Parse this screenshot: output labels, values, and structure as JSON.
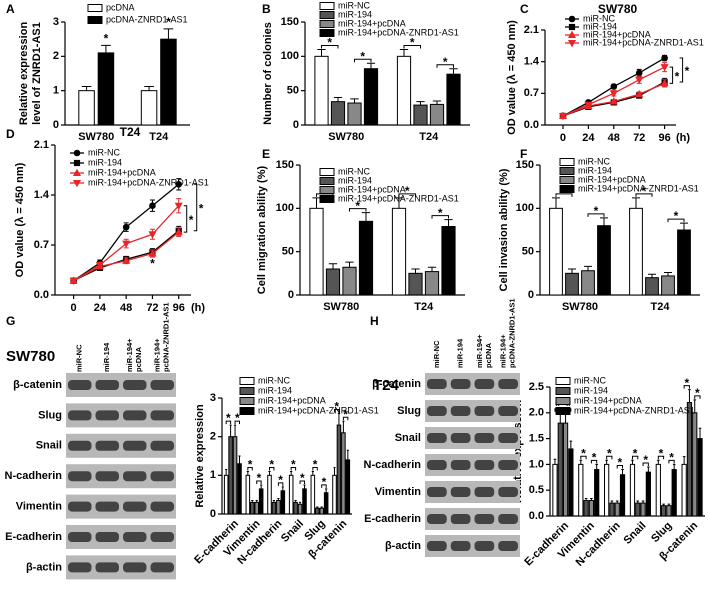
{
  "chart_data": [
    {
      "panel": "A",
      "type": "bar",
      "ylabel": [
        "Relative expression",
        "level of ZNRD1-AS1"
      ],
      "categories": [
        "SW780",
        "T24"
      ],
      "ylim": [
        0,
        3
      ],
      "yticks": [
        0,
        1,
        2,
        3
      ],
      "series": [
        {
          "name": "pcDNA",
          "color": "#ffffff",
          "values": [
            1.0,
            1.0
          ],
          "errors": [
            0.12,
            0.12
          ]
        },
        {
          "name": "pcDNA-ZNRD1-AS1",
          "color": "#000000",
          "values": [
            2.1,
            2.5
          ],
          "errors": [
            0.22,
            0.3
          ]
        }
      ],
      "significance": [
        {
          "category": 0,
          "series": [
            1
          ],
          "label": "*"
        },
        {
          "category": 1,
          "series": [
            1
          ],
          "label": "*"
        }
      ]
    },
    {
      "panel": "B",
      "type": "bar",
      "ylabel": "Number of colonies",
      "categories": [
        "SW780",
        "T24"
      ],
      "ylim": [
        0,
        150
      ],
      "yticks": [
        0,
        50,
        100,
        150
      ],
      "series": [
        {
          "name": "miR-NC",
          "color": "#ffffff",
          "values": [
            100,
            100
          ],
          "errors": [
            10,
            10
          ]
        },
        {
          "name": "miR-194",
          "color": "#555555",
          "values": [
            34,
            29
          ],
          "errors": [
            6,
            5
          ]
        },
        {
          "name": "miR-194+pcDNA",
          "color": "#888888",
          "values": [
            32,
            30
          ],
          "errors": [
            6,
            5
          ]
        },
        {
          "name": "miR-194+pcDNA-ZNRD1-AS1",
          "color": "#000000",
          "values": [
            82,
            74
          ],
          "errors": [
            8,
            8
          ]
        }
      ],
      "significance": [
        {
          "category": 0,
          "series": [
            0,
            1
          ],
          "label": "*"
        },
        {
          "category": 0,
          "series": [
            2,
            3
          ],
          "label": "*"
        },
        {
          "category": 1,
          "series": [
            0,
            1
          ],
          "label": "*"
        },
        {
          "category": 1,
          "series": [
            2,
            3
          ],
          "label": "*"
        }
      ]
    },
    {
      "panel": "C",
      "type": "line",
      "title": "SW780",
      "ylabel": "OD value (λ = 450 nm)",
      "x": [
        0,
        24,
        48,
        72,
        96
      ],
      "xunit": "(h)",
      "xlim": [
        -17,
        120
      ],
      "xticks": [
        0,
        24,
        48,
        72,
        96
      ],
      "ylim": [
        0,
        2.1
      ],
      "yticks": [
        {
          "value": 0,
          "label": "0.0"
        },
        0.7,
        1.4,
        2.1
      ],
      "series": [
        {
          "name": "miR-NC",
          "color": "#000000",
          "marker": "circle",
          "values": [
            0.2,
            0.5,
            0.85,
            1.15,
            1.48
          ],
          "errors": [
            0.02,
            0.04,
            0.05,
            0.08,
            0.06
          ]
        },
        {
          "name": "miR-194",
          "color": "#000000",
          "marker": "square",
          "values": [
            0.2,
            0.4,
            0.5,
            0.65,
            0.95
          ],
          "errors": [
            0.02,
            0.03,
            0.04,
            0.05,
            0.08
          ]
        },
        {
          "name": "miR-194+pcDNA",
          "color": "#e8262a",
          "marker": "triangle",
          "values": [
            0.2,
            0.42,
            0.52,
            0.68,
            0.92
          ],
          "errors": [
            0.02,
            0.03,
            0.04,
            0.05,
            0.08
          ]
        },
        {
          "name": "miR-194+pcDNA-ZNRD1-AS1",
          "color": "#e8262a",
          "marker": "triangle-down",
          "values": [
            0.2,
            0.45,
            0.7,
            1.0,
            1.28
          ],
          "errors": [
            0.02,
            0.04,
            0.06,
            0.08,
            0.1
          ]
        }
      ],
      "significance": [
        {
          "series": [
            3,
            2
          ],
          "label": "*"
        },
        {
          "series": [
            0,
            1
          ],
          "label": "*"
        }
      ]
    },
    {
      "panel": "D",
      "type": "line",
      "title": "T24",
      "ylabel": "OD value (λ = 450 nm)",
      "x": [
        0,
        24,
        48,
        72,
        96
      ],
      "xunit": "(h)",
      "xlim": [
        -17,
        120
      ],
      "xticks": [
        0,
        24,
        48,
        72,
        96
      ],
      "ylim": [
        0,
        2.1
      ],
      "yticks": [
        {
          "value": 0,
          "label": "0.0"
        },
        0.7,
        1.4,
        2.1
      ],
      "series": [
        {
          "name": "miR-NC",
          "color": "#000000",
          "marker": "circle",
          "values": [
            0.2,
            0.45,
            0.95,
            1.25,
            1.55
          ],
          "errors": [
            0.02,
            0.04,
            0.06,
            0.08,
            0.08
          ]
        },
        {
          "name": "miR-194",
          "color": "#000000",
          "marker": "square",
          "values": [
            0.2,
            0.38,
            0.5,
            0.6,
            0.9
          ],
          "errors": [
            0.02,
            0.03,
            0.04,
            0.05,
            0.06
          ]
        },
        {
          "name": "miR-194+pcDNA",
          "color": "#e8262a",
          "marker": "triangle",
          "values": [
            0.2,
            0.4,
            0.48,
            0.58,
            0.88
          ],
          "errors": [
            0.02,
            0.03,
            0.04,
            0.05,
            0.06
          ]
        },
        {
          "name": "miR-194+pcDNA-ZNRD1-AS1",
          "color": "#e8262a",
          "marker": "triangle-down",
          "values": [
            0.2,
            0.42,
            0.72,
            0.85,
            1.25
          ],
          "errors": [
            0.02,
            0.04,
            0.06,
            0.07,
            0.1
          ]
        }
      ],
      "significance": [
        {
          "series": [
            3,
            2
          ],
          "label": "*"
        },
        {
          "series": [
            0,
            1
          ],
          "label": "*"
        },
        {
          "series": [
            1
          ],
          "x_index": 3,
          "label": "*"
        }
      ]
    },
    {
      "panel": "E",
      "type": "bar",
      "ylabel": "Cell migration ability (%)",
      "categories": [
        "SW780",
        "T24"
      ],
      "ylim": [
        0,
        150
      ],
      "yticks": [
        0,
        50,
        100,
        150
      ],
      "series": [
        {
          "name": "miR-NC",
          "color": "#ffffff",
          "values": [
            100,
            100
          ],
          "errors": [
            12,
            12
          ]
        },
        {
          "name": "miR-194",
          "color": "#555555",
          "values": [
            30,
            25
          ],
          "errors": [
            6,
            5
          ]
        },
        {
          "name": "miR-194+pcDNA",
          "color": "#888888",
          "values": [
            32,
            27
          ],
          "errors": [
            6,
            5
          ]
        },
        {
          "name": "miR-194+pcDNA-ZNRD1-AS1",
          "color": "#000000",
          "values": [
            85,
            79
          ],
          "errors": [
            10,
            8
          ]
        }
      ],
      "significance": [
        {
          "category": 0,
          "series": [
            0,
            1
          ],
          "label": "*"
        },
        {
          "category": 0,
          "series": [
            2,
            3
          ],
          "label": "*"
        },
        {
          "category": 1,
          "series": [
            0,
            1
          ],
          "label": "*"
        },
        {
          "category": 1,
          "series": [
            2,
            3
          ],
          "label": "*"
        }
      ]
    },
    {
      "panel": "F",
      "type": "bar",
      "ylabel": "Cell invasion ability (%)",
      "categories": [
        "SW780",
        "T24"
      ],
      "ylim": [
        0,
        150
      ],
      "yticks": [
        0,
        50,
        100,
        150
      ],
      "series": [
        {
          "name": "miR-NC",
          "color": "#ffffff",
          "values": [
            100,
            100
          ],
          "errors": [
            12,
            12
          ]
        },
        {
          "name": "miR-194",
          "color": "#555555",
          "values": [
            25,
            20
          ],
          "errors": [
            5,
            4
          ]
        },
        {
          "name": "miR-194+pcDNA",
          "color": "#888888",
          "values": [
            28,
            22
          ],
          "errors": [
            5,
            4
          ]
        },
        {
          "name": "miR-194+pcDNA-ZNRD1-AS1",
          "color": "#000000",
          "values": [
            80,
            75
          ],
          "errors": [
            9,
            8
          ]
        }
      ],
      "significance": [
        {
          "category": 0,
          "series": [
            0,
            1
          ],
          "label": "*"
        },
        {
          "category": 0,
          "series": [
            2,
            3
          ],
          "label": "*"
        },
        {
          "category": 1,
          "series": [
            0,
            1
          ],
          "label": "*"
        },
        {
          "category": 1,
          "series": [
            2,
            3
          ],
          "label": "*"
        }
      ]
    },
    {
      "panel": "G",
      "type": "bar",
      "ylabel": "Relative expression",
      "categories": [
        "E-cadherin",
        "Vimentin",
        "N-cadherin",
        "Snail",
        "Slug",
        "β-catenin"
      ],
      "ylim": [
        0,
        3
      ],
      "yticks": [
        0,
        1,
        2,
        3
      ],
      "series": [
        {
          "name": "miR-NC",
          "color": "#ffffff",
          "values": [
            1,
            1,
            1,
            1,
            1,
            1
          ],
          "errors": [
            0.15,
            0.1,
            0.1,
            0.1,
            0.1,
            0.2
          ]
        },
        {
          "name": "miR-194",
          "color": "#555555",
          "values": [
            2.0,
            0.3,
            0.3,
            0.3,
            0.15,
            2.3
          ],
          "errors": [
            0.3,
            0.05,
            0.05,
            0.05,
            0.03,
            0.3
          ]
        },
        {
          "name": "miR-194+pcDNA",
          "color": "#888888",
          "values": [
            2.0,
            0.3,
            0.35,
            0.25,
            0.15,
            2.1
          ],
          "errors": [
            0.3,
            0.05,
            0.05,
            0.05,
            0.03,
            0.3
          ]
        },
        {
          "name": "miR-194+pcDNA-ZNRD1-AS1",
          "color": "#000000",
          "values": [
            1.3,
            0.65,
            0.6,
            0.65,
            0.55,
            1.4
          ],
          "errors": [
            0.2,
            0.1,
            0.1,
            0.1,
            0.1,
            0.25
          ]
        }
      ],
      "significance": [
        {
          "category": 0,
          "series": [
            0,
            1
          ],
          "label": "*"
        },
        {
          "category": 0,
          "series": [
            2,
            3
          ],
          "label": "*"
        },
        {
          "category": 1,
          "series": [
            0,
            1
          ],
          "label": "*"
        },
        {
          "category": 1,
          "series": [
            2,
            3
          ],
          "label": "*"
        },
        {
          "category": 2,
          "series": [
            0,
            1
          ],
          "label": "*"
        },
        {
          "category": 2,
          "series": [
            2,
            3
          ],
          "label": "*"
        },
        {
          "category": 3,
          "series": [
            0,
            1
          ],
          "label": "*"
        },
        {
          "category": 3,
          "series": [
            2,
            3
          ],
          "label": "*"
        },
        {
          "category": 4,
          "series": [
            0,
            1
          ],
          "label": "*"
        },
        {
          "category": 4,
          "series": [
            2,
            3
          ],
          "label": "*"
        },
        {
          "category": 5,
          "series": [
            0,
            1
          ],
          "label": "*"
        },
        {
          "category": 5,
          "series": [
            2,
            3
          ],
          "label": "*"
        }
      ]
    },
    {
      "panel": "H",
      "type": "bar",
      "ylabel": "Relative expression",
      "categories": [
        "E-cadherin",
        "Vimentin",
        "N-cadherin",
        "Snail",
        "Slug",
        "β-catenin"
      ],
      "ylim": [
        0,
        2.5
      ],
      "yticks": [
        {
          "value": 0,
          "label": "0.0"
        },
        0.5,
        {
          "value": 1,
          "label": "1.0"
        },
        1.5,
        {
          "value": 2,
          "label": "2.0"
        },
        2.5
      ],
      "series": [
        {
          "name": "miR-NC",
          "color": "#ffffff",
          "values": [
            1,
            1,
            1,
            1,
            1,
            1
          ],
          "errors": [
            0.1,
            0.08,
            0.08,
            0.08,
            0.08,
            0.15
          ]
        },
        {
          "name": "miR-194",
          "color": "#555555",
          "values": [
            1.8,
            0.3,
            0.25,
            0.25,
            0.2,
            2.2
          ],
          "errors": [
            0.2,
            0.04,
            0.04,
            0.04,
            0.03,
            0.25
          ]
        },
        {
          "name": "miR-194+pcDNA",
          "color": "#888888",
          "values": [
            1.8,
            0.3,
            0.25,
            0.25,
            0.2,
            2.0
          ],
          "errors": [
            0.2,
            0.04,
            0.04,
            0.04,
            0.03,
            0.25
          ]
        },
        {
          "name": "miR-194+pcDNA-ZNRD1-AS1",
          "color": "#000000",
          "values": [
            1.3,
            0.9,
            0.8,
            0.85,
            0.9,
            1.5
          ],
          "errors": [
            0.15,
            0.1,
            0.1,
            0.1,
            0.1,
            0.2
          ]
        }
      ],
      "significance": [
        {
          "category": 0,
          "series": [
            0,
            1
          ],
          "label": "*"
        },
        {
          "category": 0,
          "series": [
            2,
            3
          ],
          "label": "*"
        },
        {
          "category": 1,
          "series": [
            0,
            1
          ],
          "label": "*"
        },
        {
          "category": 1,
          "series": [
            2,
            3
          ],
          "label": "*"
        },
        {
          "category": 2,
          "series": [
            0,
            1
          ],
          "label": "*"
        },
        {
          "category": 2,
          "series": [
            2,
            3
          ],
          "label": "*"
        },
        {
          "category": 3,
          "series": [
            0,
            1
          ],
          "label": "*"
        },
        {
          "category": 3,
          "series": [
            2,
            3
          ],
          "label": "*"
        },
        {
          "category": 4,
          "series": [
            0,
            1
          ],
          "label": "*"
        },
        {
          "category": 4,
          "series": [
            2,
            3
          ],
          "label": "*"
        },
        {
          "category": 5,
          "series": [
            0,
            1
          ],
          "label": "*"
        },
        {
          "category": 5,
          "series": [
            2,
            3
          ],
          "label": "*"
        }
      ]
    }
  ],
  "blots": [
    {
      "title": "SW780",
      "lanes": [
        [
          "miR-NC"
        ],
        [
          "miR-194"
        ],
        [
          "miR-194+",
          "pcDNA"
        ],
        [
          "miR-194+",
          "pcDNA-ZNRD1-AS1"
        ]
      ],
      "proteins": [
        "β-catenin",
        "Slug",
        "Snail",
        "N-cadherin",
        "Vimentin",
        "E-cadherin",
        "β-actin"
      ]
    },
    {
      "title": "T24",
      "lanes": [
        [
          "miR-NC"
        ],
        [
          "miR-194"
        ],
        [
          "miR-194+",
          "pcDNA"
        ],
        [
          "miR-194+",
          "pcDNA-ZNRD1-AS1"
        ]
      ],
      "proteins": [
        "β-catenin",
        "Slug",
        "Snail",
        "N-cadherin",
        "Vimentin",
        "E-cadherin",
        "β-actin"
      ]
    }
  ]
}
